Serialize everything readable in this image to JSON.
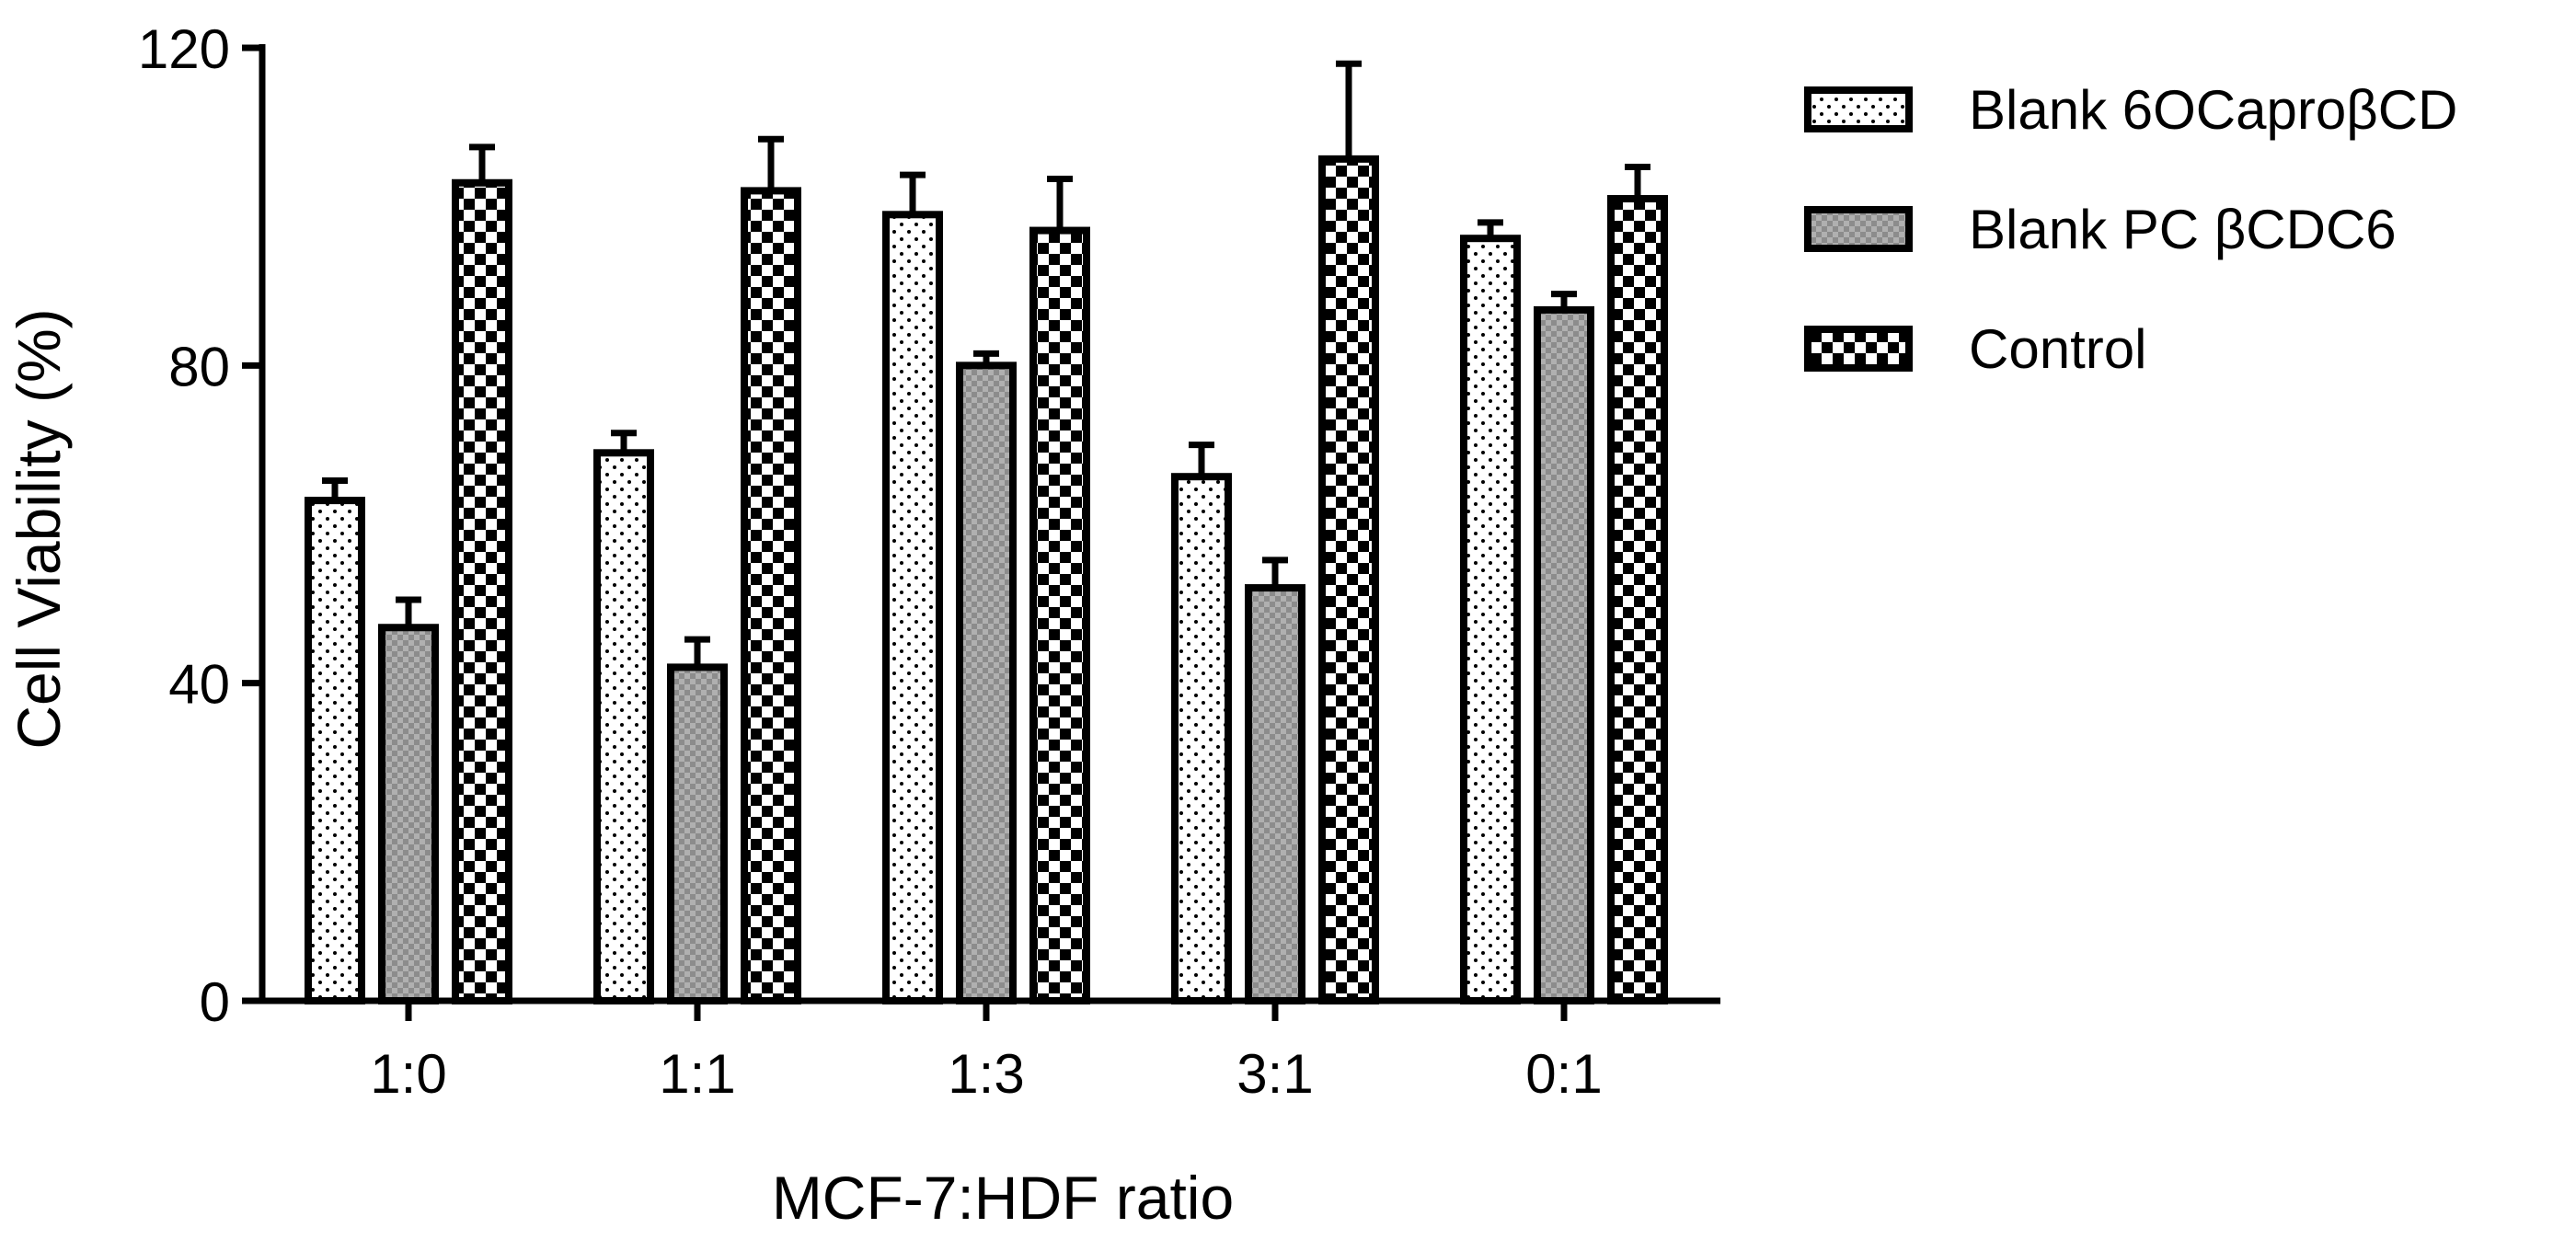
{
  "chart_data": {
    "type": "bar",
    "title": "",
    "xlabel": "MCF-7:HDF ratio",
    "ylabel": "Cell Viability (%)",
    "ylim": [
      0,
      120
    ],
    "yticks": [
      "0",
      "40",
      "80",
      "120"
    ],
    "categories": [
      "1:0",
      "1:1",
      "1:3",
      "3:1",
      "0:1"
    ],
    "series": [
      {
        "name": "Blank 6OCaproβCD",
        "pattern": "dots",
        "values": [
          63,
          69,
          99,
          66,
          96
        ],
        "errors": [
          2.5,
          2.5,
          5,
          4,
          2
        ]
      },
      {
        "name": "Blank PC βCDC6",
        "pattern": "gray-check",
        "values": [
          47,
          42,
          80,
          52,
          87
        ],
        "errors": [
          3.5,
          3.5,
          1.5,
          3.5,
          2
        ]
      },
      {
        "name": "Control",
        "pattern": "check",
        "values": [
          103,
          102,
          97,
          106,
          101
        ],
        "errors": [
          4.5,
          6.5,
          6.5,
          12,
          4
        ]
      }
    ],
    "grid": false,
    "legend_position": "top-right",
    "error_bars": "upper"
  }
}
